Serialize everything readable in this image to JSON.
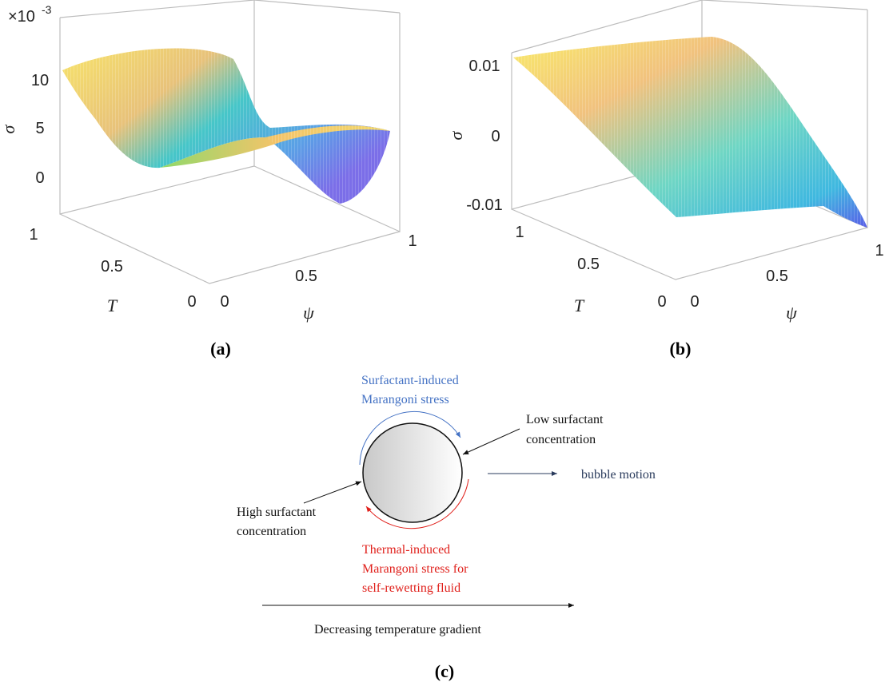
{
  "panels": [
    {
      "label": "(a)",
      "z_axis": {
        "label": "σ",
        "multiplier": "×10",
        "exponent": "-3",
        "ticks": [
          10,
          5,
          0
        ]
      },
      "t_axis": {
        "label": "T",
        "ticks": [
          1,
          0.5,
          0
        ]
      },
      "psi_axis": {
        "label": "ψ",
        "ticks": [
          0,
          0.5,
          1
        ]
      }
    },
    {
      "label": "(b)",
      "z_axis": {
        "label": "σ",
        "ticks": [
          0.01,
          0,
          -0.01
        ]
      },
      "t_axis": {
        "label": "T",
        "ticks": [
          1,
          0.5,
          0
        ]
      },
      "psi_axis": {
        "label": "ψ",
        "ticks": [
          0,
          0.5,
          1
        ]
      }
    }
  ],
  "diagram": {
    "surfactant_stress": [
      "Surfactant-induced",
      "Marangoni stress"
    ],
    "low_concentration": [
      "Low surfactant",
      "concentration"
    ],
    "high_concentration": [
      "High surfactant",
      "concentration"
    ],
    "motion": "bubble motion",
    "thermal_stress": [
      "Thermal-induced",
      "Marangoni stress for",
      "self-rewetting fluid"
    ],
    "gradient": "Decreasing temperature gradient",
    "label": "(c)"
  }
}
